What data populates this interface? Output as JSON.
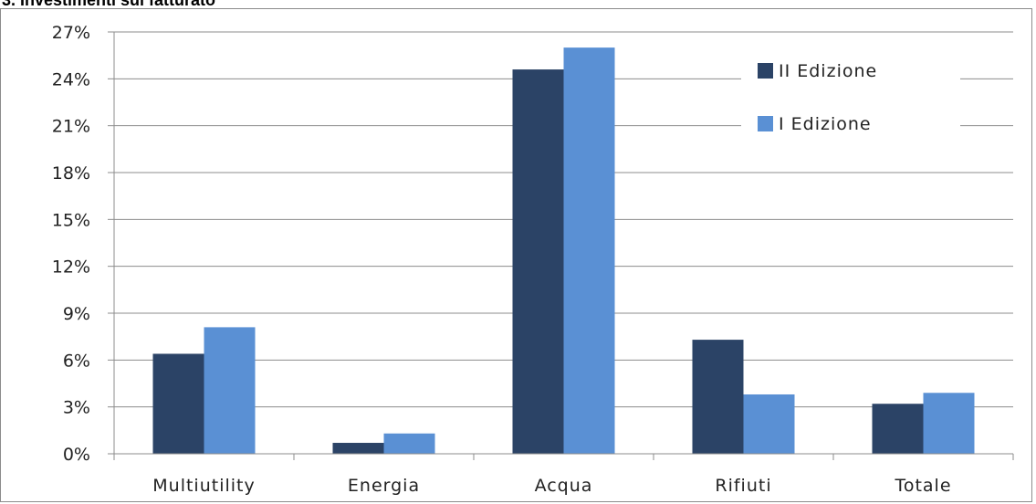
{
  "chart_data": {
    "type": "bar",
    "title": "3. Investimenti sul fatturato",
    "categories": [
      "Multiutility",
      "Energia",
      "Acqua",
      "Rifiuti",
      "Totale"
    ],
    "series": [
      {
        "name": "II Edizione",
        "color": "#2b4366",
        "values": [
          6.4,
          0.7,
          24.6,
          7.3,
          3.2
        ]
      },
      {
        "name": "I Edizione",
        "color": "#5a90d4",
        "values": [
          8.1,
          1.3,
          26.0,
          3.8,
          3.9
        ]
      }
    ],
    "yticks": [
      "0%",
      "3%",
      "6%",
      "9%",
      "12%",
      "15%",
      "18%",
      "21%",
      "24%",
      "27%"
    ],
    "ylim": [
      0,
      27
    ],
    "grid": true,
    "legend_position": "top-right"
  }
}
